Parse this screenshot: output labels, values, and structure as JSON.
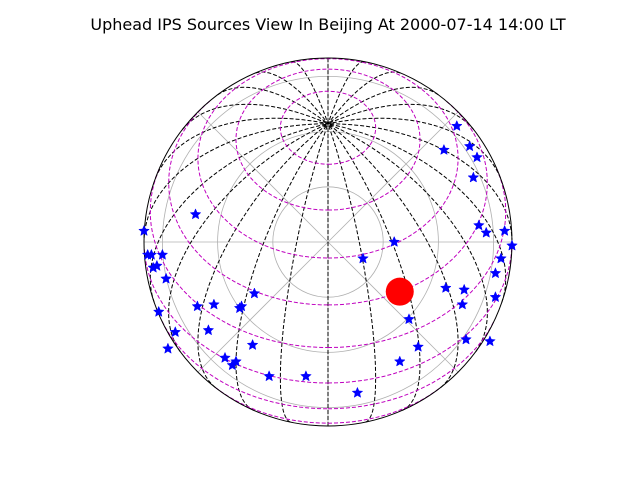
{
  "chart_data": {
    "type": "scatter",
    "title": "Uphead IPS Sources View In Beijing At 2000-07-14 14:00 LT",
    "projection": "orthographic sky view, zenith at center",
    "xlabel": "",
    "ylabel": "",
    "xlim": [
      -1,
      1
    ],
    "ylim": [
      -1,
      1
    ],
    "grid": true,
    "legend": "none",
    "colors": {
      "sources": "#0000ff",
      "sun": "#ff0000",
      "meridians": "#000000",
      "parallels": "#bf00bf",
      "polar_grid": "#b0b0b0",
      "horizon": "#000000"
    },
    "series": [
      {
        "marker": "star",
        "x": [
          0.7,
          0.77,
          0.81,
          0.79,
          0.63,
          0.82,
          0.86,
          0.96,
          1.0,
          0.94,
          0.91,
          0.74,
          0.73,
          0.64,
          0.91,
          0.75,
          0.88,
          0.36,
          0.19,
          0.44,
          0.49,
          0.39,
          0.16,
          -0.12,
          -0.32,
          -0.41,
          -0.5,
          -0.52,
          -0.56,
          -0.65,
          -0.71,
          -0.83,
          -0.92,
          -0.87,
          -0.62,
          -0.48,
          -0.47,
          -0.4,
          -0.88,
          -0.93,
          -0.95,
          -0.96,
          -0.98,
          -0.9,
          -1.0,
          -0.72
        ],
        "y": [
          0.63,
          0.52,
          0.46,
          0.35,
          0.5,
          0.09,
          0.05,
          0.06,
          -0.02,
          -0.09,
          -0.17,
          -0.26,
          -0.34,
          -0.25,
          -0.3,
          -0.53,
          -0.54,
          0.0,
          -0.09,
          -0.42,
          -0.57,
          -0.65,
          -0.82,
          -0.73,
          -0.73,
          -0.56,
          -0.65,
          -0.67,
          -0.63,
          -0.48,
          -0.35,
          -0.49,
          -0.38,
          -0.58,
          -0.34,
          -0.36,
          -0.35,
          -0.28,
          -0.2,
          -0.13,
          -0.14,
          -0.07,
          -0.07,
          -0.07,
          0.06,
          0.15
        ]
      },
      {
        "marker": "circle",
        "x": [
          0.39
        ],
        "y": [
          -0.27
        ]
      }
    ]
  }
}
